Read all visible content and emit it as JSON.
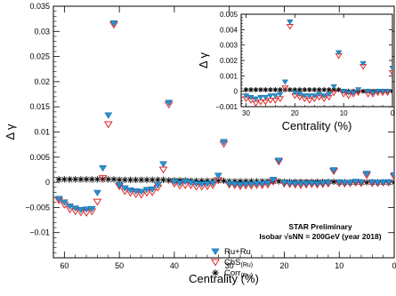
{
  "chart_data": [
    {
      "type": "scatter",
      "xlabel": "Centrality (%)",
      "ylabel": "Δ γ",
      "xlim": [
        62,
        0
      ],
      "ylim": [
        -0.015,
        0.035
      ],
      "xticks": [
        60,
        50,
        40,
        30,
        20,
        10,
        0
      ],
      "yticks": [
        -0.015,
        -0.01,
        -0.005,
        0,
        0.005,
        0.01,
        0.015,
        0.02,
        0.025,
        0.03,
        0.035
      ],
      "ytick_labels": [
        "",
        "−0.01",
        "−0.005",
        "0",
        "0.005",
        "0.01",
        "0.015",
        "0.02",
        "0.025",
        "0.03",
        "0.035"
      ],
      "annotation_line1": "STAR Preliminary",
      "annotation_line2": "Isobar √sNN = 200GeV (year 2018)",
      "legend_placement": "bottom-right",
      "series": [
        {
          "name": "Ru+Ru",
          "marker": "triangle-down",
          "color": "#2a8fd0",
          "x": [
            61,
            60,
            59,
            58,
            57,
            56,
            55,
            54,
            53,
            52,
            51,
            50,
            49,
            48,
            47,
            46,
            45,
            44,
            43,
            42,
            41,
            40,
            39,
            38,
            37,
            36,
            35,
            34,
            33,
            32,
            31,
            30,
            29,
            28,
            27,
            26,
            25,
            24,
            23,
            22,
            21,
            20,
            19,
            18,
            17,
            16,
            15,
            14,
            13,
            12,
            11,
            10,
            9,
            8,
            7,
            6,
            5,
            4,
            3,
            2,
            1,
            0
          ],
          "y": [
            -0.0033,
            -0.004,
            -0.0048,
            -0.0052,
            -0.0055,
            -0.0054,
            -0.0053,
            -0.0021,
            0.0028,
            0.0133,
            0.0316,
            -0.0006,
            -0.0012,
            -0.0016,
            -0.0018,
            -0.0019,
            -0.0015,
            -0.0014,
            -0.0006,
            0.0036,
            0.0158,
            0.0001,
            -0.0002,
            0.0001,
            -0.0001,
            -0.0003,
            -0.0004,
            -0.0003,
            -0.0002,
            0.0013,
            0.008,
            -0.0003,
            -0.0004,
            -0.0005,
            -0.0004,
            -0.0004,
            -0.0003,
            -0.0003,
            -0.0002,
            0.0005,
            0.0043,
            -0.0001,
            -0.0002,
            -0.0003,
            -0.0003,
            -0.0003,
            -0.0002,
            -0.0003,
            -0.0002,
            -0.0001,
            0.0024,
            0.0,
            -0.0001,
            -0.0001,
            0.0001,
            0.0,
            0.0017,
            0.0,
            -0.0001,
            0.0,
            0.0,
            0.0014
          ]
        },
        {
          "name": "ChS(Ru)",
          "marker": "triangle-down-open",
          "color": "#e02828",
          "x": [
            61,
            60,
            59,
            58,
            57,
            56,
            55,
            54,
            53,
            52,
            51,
            50,
            49,
            48,
            47,
            46,
            45,
            44,
            43,
            42,
            41,
            40,
            39,
            38,
            37,
            36,
            35,
            34,
            33,
            32,
            31,
            30,
            29,
            28,
            27,
            26,
            25,
            24,
            23,
            22,
            21,
            20,
            19,
            18,
            17,
            16,
            15,
            14,
            13,
            12,
            11,
            10,
            9,
            8,
            7,
            6,
            5,
            4,
            3,
            2,
            1,
            0
          ],
          "y": [
            -0.0036,
            -0.0045,
            -0.0054,
            -0.0058,
            -0.006,
            -0.0061,
            -0.0058,
            -0.0039,
            0.0008,
            0.0115,
            0.0313,
            -0.0008,
            -0.0018,
            -0.0021,
            -0.0024,
            -0.0025,
            -0.0021,
            -0.002,
            -0.0011,
            0.0025,
            0.0154,
            -0.0003,
            -0.0007,
            -0.0006,
            -0.0006,
            -0.0009,
            -0.0009,
            -0.0008,
            -0.0006,
            0.0004,
            0.0076,
            -0.0005,
            -0.0006,
            -0.0008,
            -0.0007,
            -0.0007,
            -0.0006,
            -0.0006,
            -0.0005,
            0.0001,
            0.0041,
            -0.0003,
            -0.0004,
            -0.0005,
            -0.0006,
            -0.0005,
            -0.0004,
            -0.0005,
            -0.0004,
            -0.0003,
            0.0022,
            -0.0002,
            -0.0003,
            -0.0002,
            -0.0001,
            -0.0002,
            0.0014,
            -0.0002,
            -0.0002,
            -0.0001,
            -0.0001,
            0.0011
          ]
        },
        {
          "name": "Corr(Ru)",
          "marker": "asterisk",
          "color": "#000000",
          "x": [
            61,
            60,
            59,
            58,
            57,
            56,
            55,
            54,
            53,
            52,
            51,
            50,
            49,
            48,
            47,
            46,
            45,
            44,
            43,
            42,
            41,
            40,
            39,
            38,
            37,
            36,
            35,
            34,
            33,
            32,
            31,
            30,
            29,
            28,
            27,
            26,
            25,
            24,
            23,
            22,
            21,
            20,
            19,
            18,
            17,
            16,
            15,
            14,
            13,
            12,
            11,
            10,
            9,
            8,
            7,
            6,
            5,
            4,
            3,
            2,
            1,
            0
          ],
          "y": [
            0.0006,
            0.0006,
            0.0006,
            0.0006,
            0.0006,
            0.0006,
            0.0006,
            0.0006,
            0.0006,
            0.0006,
            0.0006,
            0.0005,
            0.0005,
            0.0005,
            0.0005,
            0.0005,
            0.0005,
            0.0005,
            0.0005,
            0.0005,
            0.0004,
            0.0004,
            0.0004,
            0.0004,
            0.0003,
            0.0003,
            0.0003,
            0.0003,
            0.0003,
            0.0003,
            0.0003,
            0.0002,
            0.0002,
            0.0002,
            0.0002,
            0.0002,
            0.0002,
            0.0002,
            0.0002,
            0.0002,
            0.0002,
            0.0001,
            0.0001,
            0.0001,
            0.0001,
            0.0001,
            0.0001,
            0.0001,
            0.0001,
            0.0001,
            0.0001,
            0.0,
            0.0,
            0.0,
            0.0,
            0.0,
            0.0,
            0.0,
            0.0,
            0.0,
            0.0,
            0.0
          ]
        }
      ],
      "legend": [
        {
          "label": "Ru+Ru",
          "series": 0
        },
        {
          "label": "ChS",
          "sub": "(Ru)",
          "series": 1
        },
        {
          "label": "Corr",
          "sub": "(Ru)",
          "series": 2
        }
      ]
    },
    {
      "type": "scatter",
      "xlabel": "Centrality (%)",
      "ylabel": "Δ γ",
      "xlim": [
        31,
        0
      ],
      "ylim": [
        -0.001,
        0.005
      ],
      "xticks": [
        30,
        20,
        10,
        0
      ],
      "yticks": [
        -0.001,
        0,
        0.001,
        0.002,
        0.003,
        0.004,
        0.005
      ],
      "ytick_labels": [
        "−0.001",
        "0",
        "0.001",
        "0.002",
        "0.003",
        "0.004",
        "0.005"
      ],
      "series": [
        {
          "name": "Ru+Ru",
          "marker": "triangle-down",
          "color": "#2a8fd0",
          "x": [
            30,
            29,
            28,
            27,
            26,
            25,
            24,
            23,
            22,
            21,
            20,
            19,
            18,
            17,
            16,
            15,
            14,
            13,
            12,
            11,
            10,
            9,
            8,
            7,
            6,
            5,
            4,
            3,
            2,
            1,
            0
          ],
          "y": [
            -0.0003,
            -0.0004,
            -0.0005,
            -0.0004,
            -0.0004,
            -0.0003,
            -0.0003,
            -0.0002,
            0.0006,
            0.0045,
            -0.0001,
            -0.0002,
            -0.0003,
            -0.0003,
            -0.0003,
            -0.0002,
            -0.0003,
            -0.0002,
            0.0003,
            0.0025,
            0.0,
            -0.0001,
            -0.0001,
            0.0001,
            0.0018,
            0.0,
            -0.0001,
            0.0,
            0.0,
            0.0,
            0.0015
          ]
        },
        {
          "name": "ChS(Ru)",
          "marker": "triangle-down-open",
          "color": "#e02828",
          "x": [
            30,
            29,
            28,
            27,
            26,
            25,
            24,
            23,
            22,
            21,
            20,
            19,
            18,
            17,
            16,
            15,
            14,
            13,
            12,
            11,
            10,
            9,
            8,
            7,
            6,
            5,
            4,
            3,
            2,
            1,
            0
          ],
          "y": [
            -0.0005,
            -0.0006,
            -0.0008,
            -0.0007,
            -0.0007,
            -0.0006,
            -0.0006,
            -0.0005,
            0.0002,
            0.0042,
            -0.0003,
            -0.0004,
            -0.0005,
            -0.0006,
            -0.0005,
            -0.0004,
            -0.0005,
            -0.0004,
            -0.0001,
            0.0023,
            -0.0002,
            -0.0003,
            -0.0002,
            -0.0001,
            0.0016,
            -0.0002,
            -0.0002,
            -0.0001,
            -0.0001,
            -0.0001,
            0.0012
          ]
        },
        {
          "name": "Corr(Ru)",
          "marker": "asterisk",
          "color": "#000000",
          "x": [
            30,
            29,
            28,
            27,
            26,
            25,
            24,
            23,
            22,
            21,
            20,
            19,
            18,
            17,
            16,
            15,
            14,
            13,
            12,
            11,
            10,
            9,
            8,
            7,
            6,
            5,
            4,
            3,
            2,
            1,
            0
          ],
          "y": [
            0.0001,
            0.0001,
            0.0001,
            0.0001,
            0.0001,
            0.0001,
            0.0001,
            0.0001,
            0.0001,
            0.0001,
            0.0001,
            0.0001,
            0.0001,
            0.0001,
            0.0001,
            0.0001,
            0.0001,
            0.0001,
            0.0001,
            0.0001,
            0.0,
            0.0,
            0.0,
            0.0,
            0.0,
            0.0,
            0.0,
            0.0,
            0.0,
            0.0,
            0.0
          ]
        }
      ]
    }
  ]
}
